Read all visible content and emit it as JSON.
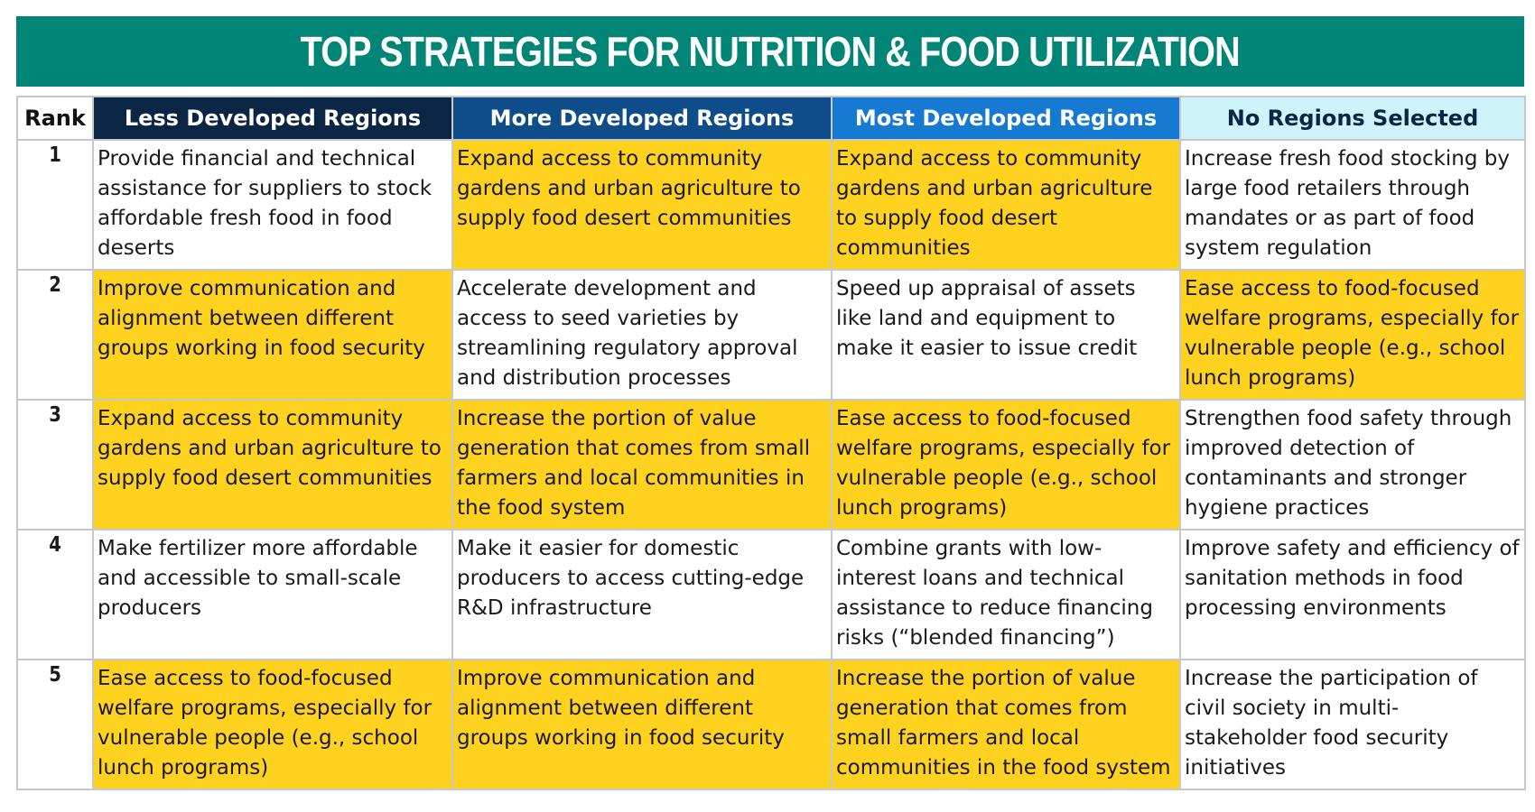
{
  "title": "TOP STRATEGIES FOR NUTRITION & FOOD UTILIZATION",
  "colors": {
    "banner": "#008577",
    "highlight": "#FFD21F",
    "plain": "#FFFFFF"
  },
  "table": {
    "rank_header": "Rank",
    "columns": [
      {
        "label": "Less Developed Regions",
        "bg": "#0B2545",
        "fg": "#FFFFFF"
      },
      {
        "label": "More Developed Regions",
        "bg": "#0E4C8A",
        "fg": "#FFFFFF"
      },
      {
        "label": "Most Developed Regions",
        "bg": "#1679D2",
        "fg": "#FFFFFF"
      },
      {
        "label": "No Regions Selected",
        "bg": "#CFF2FB",
        "fg": "#0B2545"
      }
    ],
    "rows": [
      {
        "rank": "1",
        "cells": [
          {
            "text": "Provide financial and technical assistance for suppliers to stock affordable fresh food in food deserts",
            "highlight": false
          },
          {
            "text": "Expand access to community gardens and urban agriculture to supply food desert communities",
            "highlight": true
          },
          {
            "text": "Expand access to community gardens and urban agriculture to supply food desert communities",
            "highlight": true
          },
          {
            "text": "Increase fresh food stocking by large food retailers through mandates or as part of food system regulation",
            "highlight": false
          }
        ]
      },
      {
        "rank": "2",
        "cells": [
          {
            "text": "Improve communication and alignment between different groups working in food security",
            "highlight": true
          },
          {
            "text": "Accelerate development and access to seed varieties by streamlining regulatory approval and distribution processes",
            "highlight": false
          },
          {
            "text": "Speed up appraisal of assets like land and equipment to make it easier to issue credit",
            "highlight": false
          },
          {
            "text": "Ease access to food-focused welfare programs, especially for vulnerable people (e.g., school lunch programs)",
            "highlight": true
          }
        ]
      },
      {
        "rank": "3",
        "cells": [
          {
            "text": "Expand access to community gardens and urban agriculture to supply food desert communities",
            "highlight": true
          },
          {
            "text": "Increase the portion of value generation that comes from small farmers and local communities in the food system",
            "highlight": true
          },
          {
            "text": "Ease access to food-focused welfare programs, especially for vulnerable people (e.g., school lunch programs)",
            "highlight": true
          },
          {
            "text": "Strengthen food safety through improved detection of contaminants and stronger hygiene practices",
            "highlight": false
          }
        ]
      },
      {
        "rank": "4",
        "cells": [
          {
            "text": "Make fertilizer more affordable and accessible to small-scale producers",
            "highlight": false
          },
          {
            "text": "Make it easier for domestic producers to access cutting-edge R&D infrastructure",
            "highlight": false
          },
          {
            "text": "Combine grants with low-interest loans and technical assistance to reduce financing risks (“blended financing”)",
            "highlight": false
          },
          {
            "text": "Improve safety and efficiency of sanitation methods in food processing environments",
            "highlight": false
          }
        ]
      },
      {
        "rank": "5",
        "cells": [
          {
            "text": "Ease access to food-focused welfare programs, especially for vulnerable people (e.g., school lunch programs)",
            "highlight": true
          },
          {
            "text": "Improve communication and alignment between different groups working in food security",
            "highlight": true
          },
          {
            "text": "Increase the portion of value generation that comes from small farmers and local communities in the food system",
            "highlight": true
          },
          {
            "text": "Increase the participation of civil society in multi-stakeholder food security initiatives",
            "highlight": false
          }
        ]
      }
    ]
  }
}
